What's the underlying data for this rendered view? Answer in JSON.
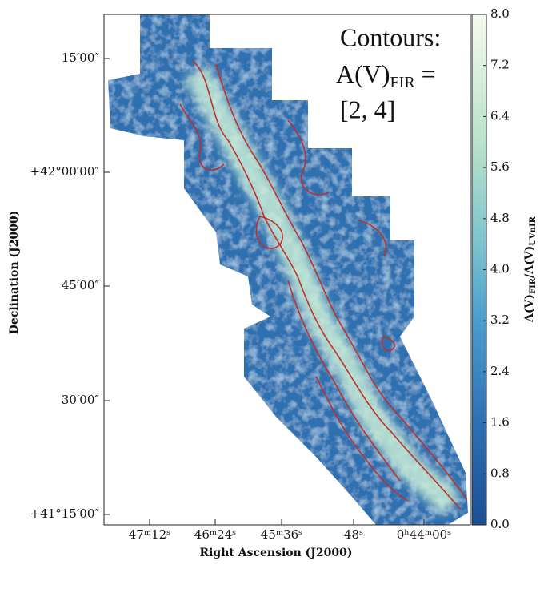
{
  "chart_data": {
    "type": "image",
    "x_label": "Right Ascension (J2000)",
    "y_label": "Declination (J2000)",
    "xtick_labels": [
      "47ᵐ12ˢ",
      "46ᵐ24ˢ",
      "45ᵐ36ˢ",
      "48ˢ",
      "0ʰ44ᵐ00ˢ"
    ],
    "ytick_labels": [
      "15′00″",
      "+42°00′00″",
      "45′00″",
      "30′00″",
      "+41°15′00″"
    ],
    "colorbar": {
      "label": [
        {
          "text": "A(V)"
        },
        {
          "sub": "FIR"
        },
        {
          "text": "/A(V)"
        },
        {
          "sub": "UVnIR"
        }
      ],
      "clim": [
        0,
        8
      ],
      "ticks": [
        {
          "value": 0,
          "label": "0.0"
        },
        0.8,
        1.6,
        2.4,
        3.2,
        {
          "value": 4,
          "label": "4.0"
        },
        4.8,
        5.6,
        6.4,
        7.2,
        {
          "value": 8,
          "label": "8.0"
        }
      ]
    },
    "annotation": {
      "line1": "Contours:",
      "line2": [
        {
          "text": "A(V)"
        },
        {
          "sub": "FIR"
        },
        {
          "text": " ="
        }
      ],
      "line3": "[2, 4]"
    }
  }
}
